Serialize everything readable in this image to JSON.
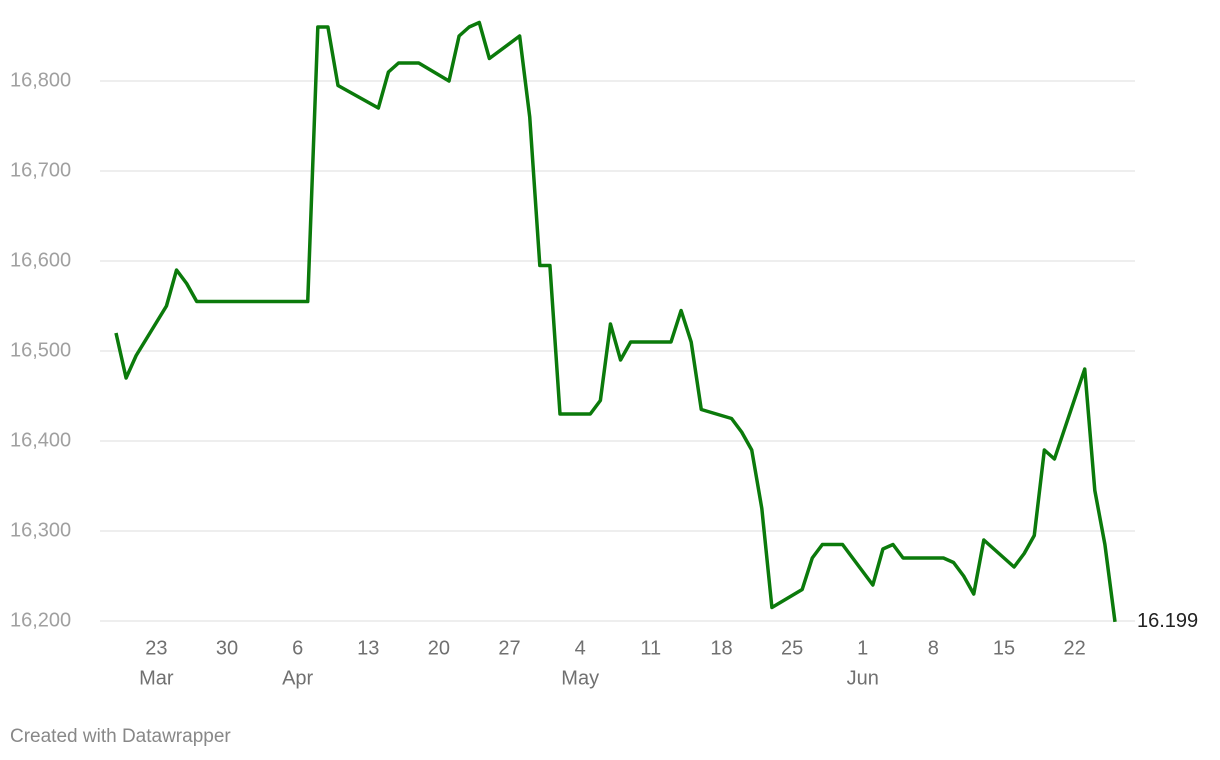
{
  "chart_data": {
    "type": "line",
    "color": "#0b7a0b",
    "grid": true,
    "x": [
      "03-19",
      "03-20",
      "03-21",
      "03-24",
      "03-25",
      "03-26",
      "03-27",
      "04-07",
      "04-08",
      "04-09",
      "04-10",
      "04-14",
      "04-15",
      "04-16",
      "04-18",
      "04-21",
      "04-22",
      "04-23",
      "04-24",
      "04-25",
      "04-28",
      "04-29",
      "04-30",
      "05-01",
      "05-02",
      "05-05",
      "05-06",
      "05-07",
      "05-08",
      "05-09",
      "05-13",
      "05-14",
      "05-15",
      "05-16",
      "05-19",
      "05-20",
      "05-21",
      "05-22",
      "05-23",
      "05-26",
      "05-27",
      "05-28",
      "05-30",
      "06-02",
      "06-03",
      "06-04",
      "06-05",
      "06-09",
      "06-10",
      "06-11",
      "06-12",
      "06-13",
      "06-16",
      "06-17",
      "06-18",
      "06-19",
      "06-20",
      "06-23",
      "06-24",
      "06-25",
      "06-26"
    ],
    "values": [
      16520,
      16470,
      16495,
      16550,
      16590,
      16575,
      16555,
      16555,
      16860,
      16860,
      16795,
      16770,
      16810,
      16820,
      16820,
      16800,
      16850,
      16860,
      16865,
      16825,
      16850,
      16760,
      16595,
      16595,
      16430,
      16430,
      16445,
      16530,
      16490,
      16510,
      16510,
      16545,
      16510,
      16435,
      16425,
      16410,
      16390,
      16325,
      16215,
      16235,
      16270,
      16285,
      16285,
      16240,
      16280,
      16285,
      16270,
      16270,
      16265,
      16250,
      16230,
      16290,
      16260,
      16275,
      16295,
      16390,
      16380,
      16480,
      16345,
      16285,
      16199
    ],
    "value_labels": [
      null,
      null,
      null,
      null,
      null,
      null,
      null,
      null,
      null,
      null,
      null,
      null,
      null,
      null,
      null,
      null,
      null,
      null,
      null,
      null,
      null,
      null,
      null,
      null,
      null,
      null,
      null,
      null,
      null,
      null,
      null,
      null,
      null,
      null,
      null,
      null,
      null,
      null,
      null,
      null,
      null,
      null,
      null,
      null,
      null,
      null,
      null,
      null,
      null,
      null,
      null,
      null,
      null,
      null,
      null,
      null,
      null,
      null,
      null,
      null,
      "16.199"
    ],
    "xlim": [
      "03-19",
      "06-26"
    ],
    "xticks": [
      {
        "value": "03-23",
        "label": "23"
      },
      {
        "value": "03-30",
        "label": "30"
      },
      {
        "value": "04-06",
        "label": "6"
      },
      {
        "value": "04-13",
        "label": "13"
      },
      {
        "value": "04-20",
        "label": "20"
      },
      {
        "value": "04-27",
        "label": "27"
      },
      {
        "value": "05-04",
        "label": "4"
      },
      {
        "value": "05-11",
        "label": "11"
      },
      {
        "value": "05-18",
        "label": "18"
      },
      {
        "value": "05-25",
        "label": "25"
      },
      {
        "value": "06-01",
        "label": "1"
      },
      {
        "value": "06-08",
        "label": "8"
      },
      {
        "value": "06-15",
        "label": "15"
      },
      {
        "value": "06-22",
        "label": "22"
      }
    ],
    "xtick_months": [
      {
        "value": "03-23",
        "label": "Mar"
      },
      {
        "value": "04-06",
        "label": "Apr"
      },
      {
        "value": "05-04",
        "label": "May"
      },
      {
        "value": "06-01",
        "label": "Jun"
      }
    ],
    "ylim": [
      16200,
      16870
    ],
    "yticks": [
      {
        "value": 16200,
        "label": "16,200"
      },
      {
        "value": 16300,
        "label": "16,300"
      },
      {
        "value": 16400,
        "label": "16,400"
      },
      {
        "value": 16500,
        "label": "16,500"
      },
      {
        "value": 16600,
        "label": "16,600"
      },
      {
        "value": 16700,
        "label": "16,700"
      },
      {
        "value": 16800,
        "label": "16,800"
      }
    ],
    "footer": "Created with Datawrapper"
  }
}
